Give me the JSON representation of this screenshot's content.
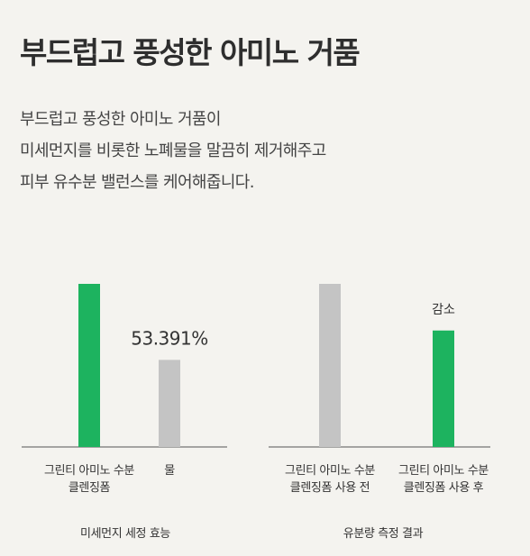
{
  "heading": "부드럽고 풍성한 아미노 거품",
  "description": [
    "부드럽고 풍성한 아미노 거품이",
    "미세먼지를 비롯한 노폐물을 말끔히 제거해주고",
    "피부 유수분 밸런스를 케어해줍니다."
  ],
  "colors": {
    "green": "#1db35f",
    "gray": "#c4c4c4",
    "axis": "#555555"
  },
  "chart_data": [
    {
      "type": "bar",
      "title": "미세먼지 세정 효능",
      "categories": [
        [
          "그린티 아미노 수분",
          "클렌징폼"
        ],
        [
          "물"
        ]
      ],
      "values": [
        100,
        53.391
      ],
      "bar_colors": [
        "green",
        "gray"
      ],
      "data_labels": [
        "",
        "53.391%"
      ],
      "ylim": [
        0,
        100
      ]
    },
    {
      "type": "bar",
      "title": "유분량 측정 결과",
      "categories": [
        [
          "그린티 아미노 수분",
          "클렌징폼 사용 전"
        ],
        [
          "그린티 아미노 수분",
          "클렌징폼 사용 후"
        ]
      ],
      "values": [
        100,
        71.4
      ],
      "bar_colors": [
        "gray",
        "green"
      ],
      "data_labels": [
        "",
        "감소"
      ],
      "ylim": [
        0,
        100
      ]
    }
  ]
}
